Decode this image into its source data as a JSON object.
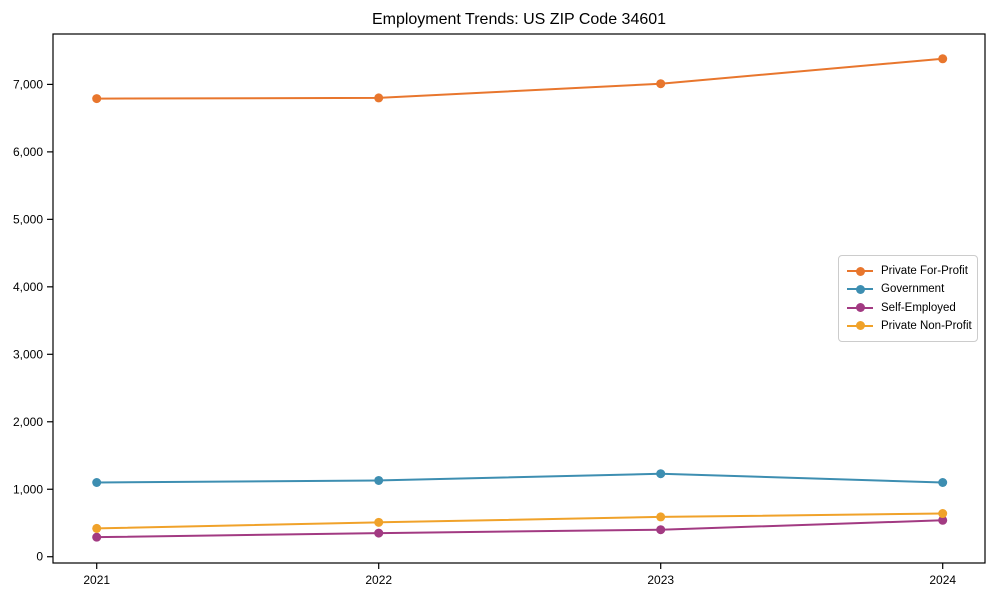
{
  "chart_data": {
    "type": "line",
    "title": "Employment Trends: US ZIP Code 34601",
    "xlabel": "",
    "ylabel": "",
    "x": [
      2021,
      2022,
      2023,
      2024
    ],
    "x_tick_labels": [
      "2021",
      "2022",
      "2023",
      "2024"
    ],
    "y_ticks": [
      0,
      1000,
      2000,
      3000,
      4000,
      5000,
      6000,
      7000
    ],
    "y_tick_labels": [
      "0",
      "1,000",
      "2,000",
      "3,000",
      "4,000",
      "5,000",
      "6,000",
      "7,000"
    ],
    "xlim": [
      2020.845,
      2024.15
    ],
    "ylim": [
      -93,
      7747
    ],
    "grid": false,
    "legend_position": "center right",
    "series": [
      {
        "name": "Private For-Profit",
        "color": "#e8762d",
        "values": [
          6790,
          6800,
          7010,
          7380
        ]
      },
      {
        "name": "Government",
        "color": "#3d8eb1",
        "values": [
          1100,
          1130,
          1230,
          1100
        ]
      },
      {
        "name": "Self-Employed",
        "color": "#a23a82",
        "values": [
          290,
          350,
          400,
          540
        ]
      },
      {
        "name": "Private Non-Profit",
        "color": "#f0a22a",
        "values": [
          420,
          510,
          590,
          640
        ]
      }
    ]
  }
}
